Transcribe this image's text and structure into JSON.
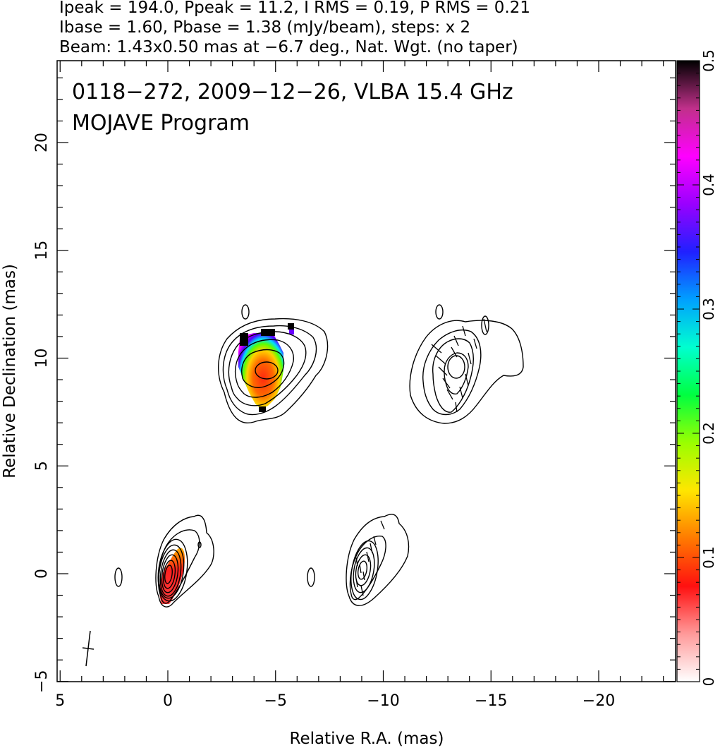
{
  "header": {
    "line1": "Ipeak = 194.0, Ppeak = 11.2, I RMS = 0.19, P RMS = 0.21",
    "line2": "Ibase = 1.60, Pbase = 1.38 (mJy/beam), steps: x 2",
    "line3": "Beam: 1.43x0.50 mas at −6.7 deg., Nat. Wgt. (no taper)"
  },
  "plot_titles": {
    "source_line": "0118−272, 2009−12−26, VLBA 15.4 GHz",
    "program_line": "MOJAVE Program"
  },
  "colors": {
    "contour": "#000000",
    "frame": "#000000",
    "colorbar_stops": [
      "#ffffff",
      "#ff9a9a",
      "#ff1010",
      "#ff7a00",
      "#ffe600",
      "#9aff00",
      "#00ff40",
      "#00ffd0",
      "#00a0ff",
      "#2020ff",
      "#9a00ff",
      "#ff00ff",
      "#c0308a",
      "#000000"
    ]
  },
  "chart_data": {
    "type": "contour-map",
    "xlabel": "Relative R.A. (mas)",
    "ylabel": "Relative Declination (mas)",
    "xlim": [
      5,
      -24
    ],
    "ylim": [
      -5,
      24
    ],
    "x_ticks": [
      5,
      0,
      -5,
      -10,
      -15,
      -20
    ],
    "x_tick_labels": [
      "5",
      "0",
      "−5",
      "−10",
      "−15",
      "−20"
    ],
    "y_ticks": [
      -5,
      0,
      5,
      10,
      15,
      20
    ],
    "y_tick_labels": [
      "−5",
      "0",
      "5",
      "10",
      "15",
      "20"
    ],
    "colorbar": {
      "min": 0,
      "max": 0.5,
      "ticks": [
        0,
        0.1,
        0.2,
        0.3,
        0.4,
        0.5
      ],
      "tick_labels": [
        "0",
        "0.1",
        "0.2",
        "0.3",
        "0.4",
        "0.5"
      ]
    },
    "components": [
      {
        "panel": "stokes-I",
        "ra": 0.0,
        "dec": 0.0,
        "kind": "core"
      },
      {
        "panel": "stokes-I",
        "ra": -4.3,
        "dec": 9.3,
        "kind": "jet"
      },
      {
        "panel": "polarization",
        "ra": -9.1,
        "dec": 0.2,
        "kind": "core"
      },
      {
        "panel": "polarization",
        "ra": -13.4,
        "dec": 9.3,
        "kind": "jet"
      }
    ],
    "beam": {
      "major_mas": 1.43,
      "minor_mas": 0.5,
      "pa_deg": -6.7
    }
  }
}
